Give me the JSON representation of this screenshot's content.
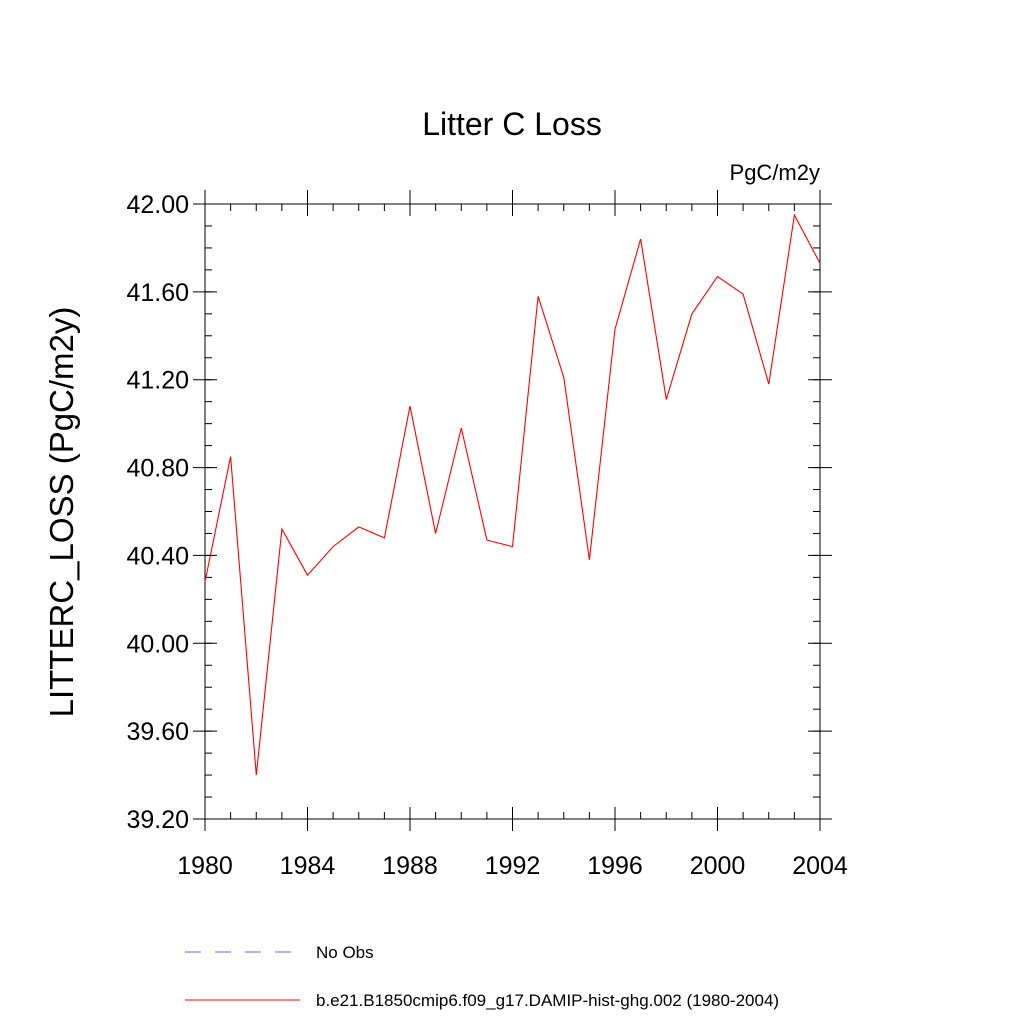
{
  "chart_data": {
    "type": "line",
    "title": "Litter C Loss",
    "units_label": "PgC/m2y",
    "ylabel": "LITTERC_LOSS  (PgC/m2y)",
    "xlabel": "",
    "xlim": [
      1980,
      2004
    ],
    "ylim": [
      39.2,
      42.0
    ],
    "x_ticks": [
      1980,
      1984,
      1988,
      1992,
      1996,
      2000,
      2004
    ],
    "x_tick_labels": [
      "1980",
      "1984",
      "1988",
      "1992",
      "1996",
      "2000",
      "2004"
    ],
    "y_ticks": [
      39.2,
      39.6,
      40.0,
      40.4,
      40.8,
      41.2,
      41.6,
      42.0
    ],
    "y_tick_labels": [
      "39.20",
      "39.60",
      "40.00",
      "40.40",
      "40.80",
      "41.20",
      "41.60",
      "42.00"
    ],
    "x_minor_step": 1,
    "y_minor_step": 0.1,
    "grid": false,
    "legend_position": "bottom",
    "series": [
      {
        "name": "b.e21.B1850cmip6.f09_g17.DAMIP-hist-ghg.002 (1980-2004)",
        "color": "#ff0000",
        "dash": "solid",
        "x": [
          1980,
          1981,
          1982,
          1983,
          1984,
          1985,
          1986,
          1987,
          1988,
          1989,
          1990,
          1991,
          1992,
          1993,
          1994,
          1995,
          1996,
          1997,
          1998,
          1999,
          2000,
          2001,
          2002,
          2003,
          2004
        ],
        "values": [
          40.28,
          40.85,
          39.4,
          40.52,
          40.31,
          40.44,
          40.53,
          40.48,
          41.08,
          40.5,
          40.98,
          40.47,
          40.44,
          41.58,
          41.21,
          40.38,
          41.43,
          41.84,
          41.11,
          41.5,
          41.67,
          41.59,
          41.18,
          41.95,
          41.73
        ]
      },
      {
        "name": "No Obs",
        "color": "#6a6ad8",
        "dash": "dashed",
        "x": [],
        "values": []
      }
    ]
  }
}
